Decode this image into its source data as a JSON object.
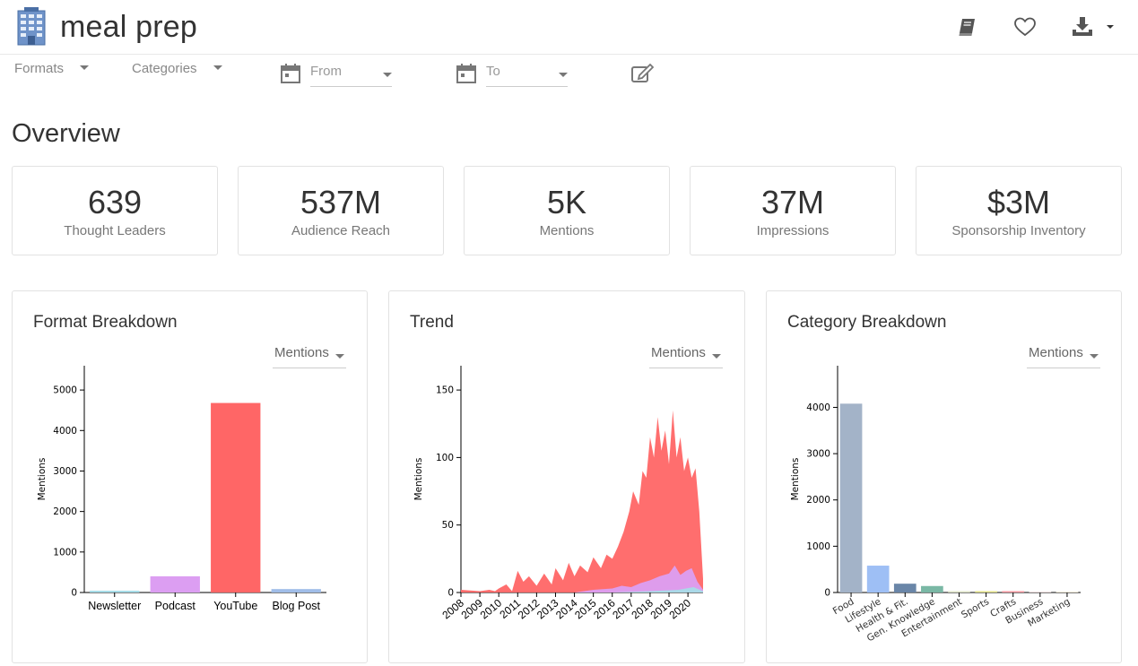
{
  "header": {
    "title": "meal prep",
    "icons": [
      "building-icon",
      "book-icon",
      "heart-icon",
      "download-icon"
    ]
  },
  "filters": {
    "formats_label": "Formats",
    "categories_label": "Categories",
    "from_placeholder": "From",
    "to_placeholder": "To"
  },
  "overview": {
    "title": "Overview",
    "kpis": [
      {
        "value": "639",
        "label": "Thought Leaders"
      },
      {
        "value": "537M",
        "label": "Audience Reach"
      },
      {
        "value": "5K",
        "label": "Mentions"
      },
      {
        "value": "37M",
        "label": "Impressions"
      },
      {
        "value": "$3M",
        "label": "Sponsorship Inventory"
      }
    ]
  },
  "panels": {
    "format": {
      "title": "Format Breakdown",
      "metric": "Mentions"
    },
    "trend": {
      "title": "Trend",
      "metric": "Mentions"
    },
    "category": {
      "title": "Category Breakdown",
      "metric": "Mentions"
    }
  },
  "chart_data": [
    {
      "type": "bar",
      "title": "Format Breakdown",
      "ylabel": "Mentions",
      "ylim": [
        0,
        5600
      ],
      "yticks": [
        0,
        1000,
        2000,
        3000,
        4000,
        5000
      ],
      "categories": [
        "Newsletter",
        "Podcast",
        "YouTube",
        "Blog Post"
      ],
      "values": [
        45,
        400,
        4680,
        85
      ],
      "colors": [
        "#a6dce8",
        "#dc9ef2",
        "#ff6666",
        "#a0bde8"
      ]
    },
    {
      "type": "area",
      "title": "Trend",
      "ylabel": "Mentions",
      "ylim": [
        0,
        168
      ],
      "yticks": [
        0,
        50,
        100,
        150
      ],
      "x_labels": [
        "2008",
        "2009",
        "2010",
        "2011",
        "2012",
        "2013",
        "2014",
        "2015",
        "2016",
        "2017",
        "2018",
        "2019",
        "2020"
      ],
      "x_range": [
        2008.0,
        2020.8
      ],
      "series": [
        {
          "color": "#ff6666",
          "x": [
            2008.0,
            2009.0,
            2009.5,
            2009.8,
            2010.0,
            2010.4,
            2010.7,
            2011.0,
            2011.3,
            2011.6,
            2012.0,
            2012.4,
            2012.8,
            2013.0,
            2013.4,
            2013.7,
            2014.0,
            2014.3,
            2014.7,
            2015.0,
            2015.4,
            2015.7,
            2016.0,
            2016.3,
            2016.6,
            2016.9,
            2017.1,
            2017.4,
            2017.6,
            2017.8,
            2018.0,
            2018.2,
            2018.4,
            2018.6,
            2018.8,
            2019.0,
            2019.2,
            2019.4,
            2019.6,
            2019.8,
            2020.0,
            2020.2,
            2020.4,
            2020.6,
            2020.8
          ],
          "y": [
            2,
            1,
            2,
            1,
            3,
            6,
            1,
            16,
            8,
            12,
            5,
            14,
            6,
            18,
            9,
            22,
            12,
            20,
            15,
            26,
            18,
            28,
            25,
            34,
            45,
            60,
            75,
            65,
            90,
            85,
            115,
            100,
            130,
            105,
            120,
            95,
            135,
            100,
            115,
            90,
            100,
            85,
            92,
            60,
            10
          ]
        },
        {
          "color": "#dc9ef2",
          "x": [
            2008.0,
            2014.0,
            2015.0,
            2016.0,
            2016.5,
            2017.0,
            2017.5,
            2018.0,
            2018.5,
            2019.0,
            2019.3,
            2019.6,
            2019.9,
            2020.2,
            2020.5,
            2020.8
          ],
          "y": [
            0,
            0,
            2,
            3,
            5,
            4,
            7,
            9,
            12,
            14,
            20,
            13,
            16,
            18,
            8,
            2
          ]
        },
        {
          "color": "#a6dce8",
          "x": [
            2008.0,
            2016.0,
            2018.0,
            2019.5,
            2020.3,
            2020.8
          ],
          "y": [
            0,
            0,
            1,
            2,
            4,
            1
          ]
        }
      ]
    },
    {
      "type": "bar",
      "title": "Category Breakdown",
      "ylabel": "Mentions",
      "ylim": [
        0,
        4900
      ],
      "yticks": [
        0,
        1000,
        2000,
        3000,
        4000
      ],
      "categories": [
        "Food",
        "Lifestyle",
        "Health & Fit.",
        "Gen. Knowledge",
        "Entertainment",
        "Sports",
        "Crafts",
        "Business",
        "Marketing"
      ],
      "values": [
        4080,
        580,
        190,
        140,
        30,
        30,
        30,
        12,
        10
      ],
      "colors": [
        "#a3b3c8",
        "#9ebff5",
        "#6a86a8",
        "#7ab8a5",
        "#e0e4c8",
        "#e3e28a",
        "#f49aa3",
        "#dfc7c7",
        "#e0d3b0"
      ]
    }
  ]
}
